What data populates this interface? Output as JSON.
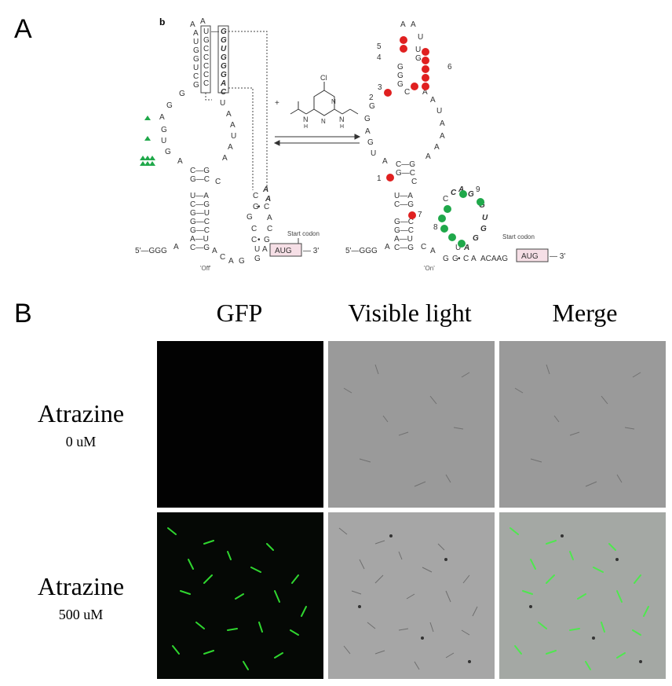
{
  "panel_a": {
    "letter": "A",
    "sub_label": "b",
    "ligand_charge": "+",
    "ligand_atom_cl": "Cl",
    "ligand_atom_n": "N",
    "ligand_atom_h": "H",
    "off_label": "'Off'",
    "on_label": "'On'",
    "start_codon_label": "Start codon",
    "start_codon": "AUG",
    "five_prime": "5'—GGG",
    "three_prime": "— 3'",
    "annotation_numbers": [
      "1",
      "2",
      "3",
      "4",
      "5",
      "6",
      "7",
      "8",
      "9"
    ],
    "highlight_colors": {
      "red": "#e02020",
      "green": "#1fa84a"
    }
  },
  "panel_b": {
    "letter": "B",
    "columns": [
      "GFP",
      "Visible light",
      "Merge"
    ],
    "rows": [
      {
        "label": "Atrazine",
        "concentration": "0 uM"
      },
      {
        "label": "Atrazine",
        "concentration": "500 uM"
      }
    ]
  }
}
